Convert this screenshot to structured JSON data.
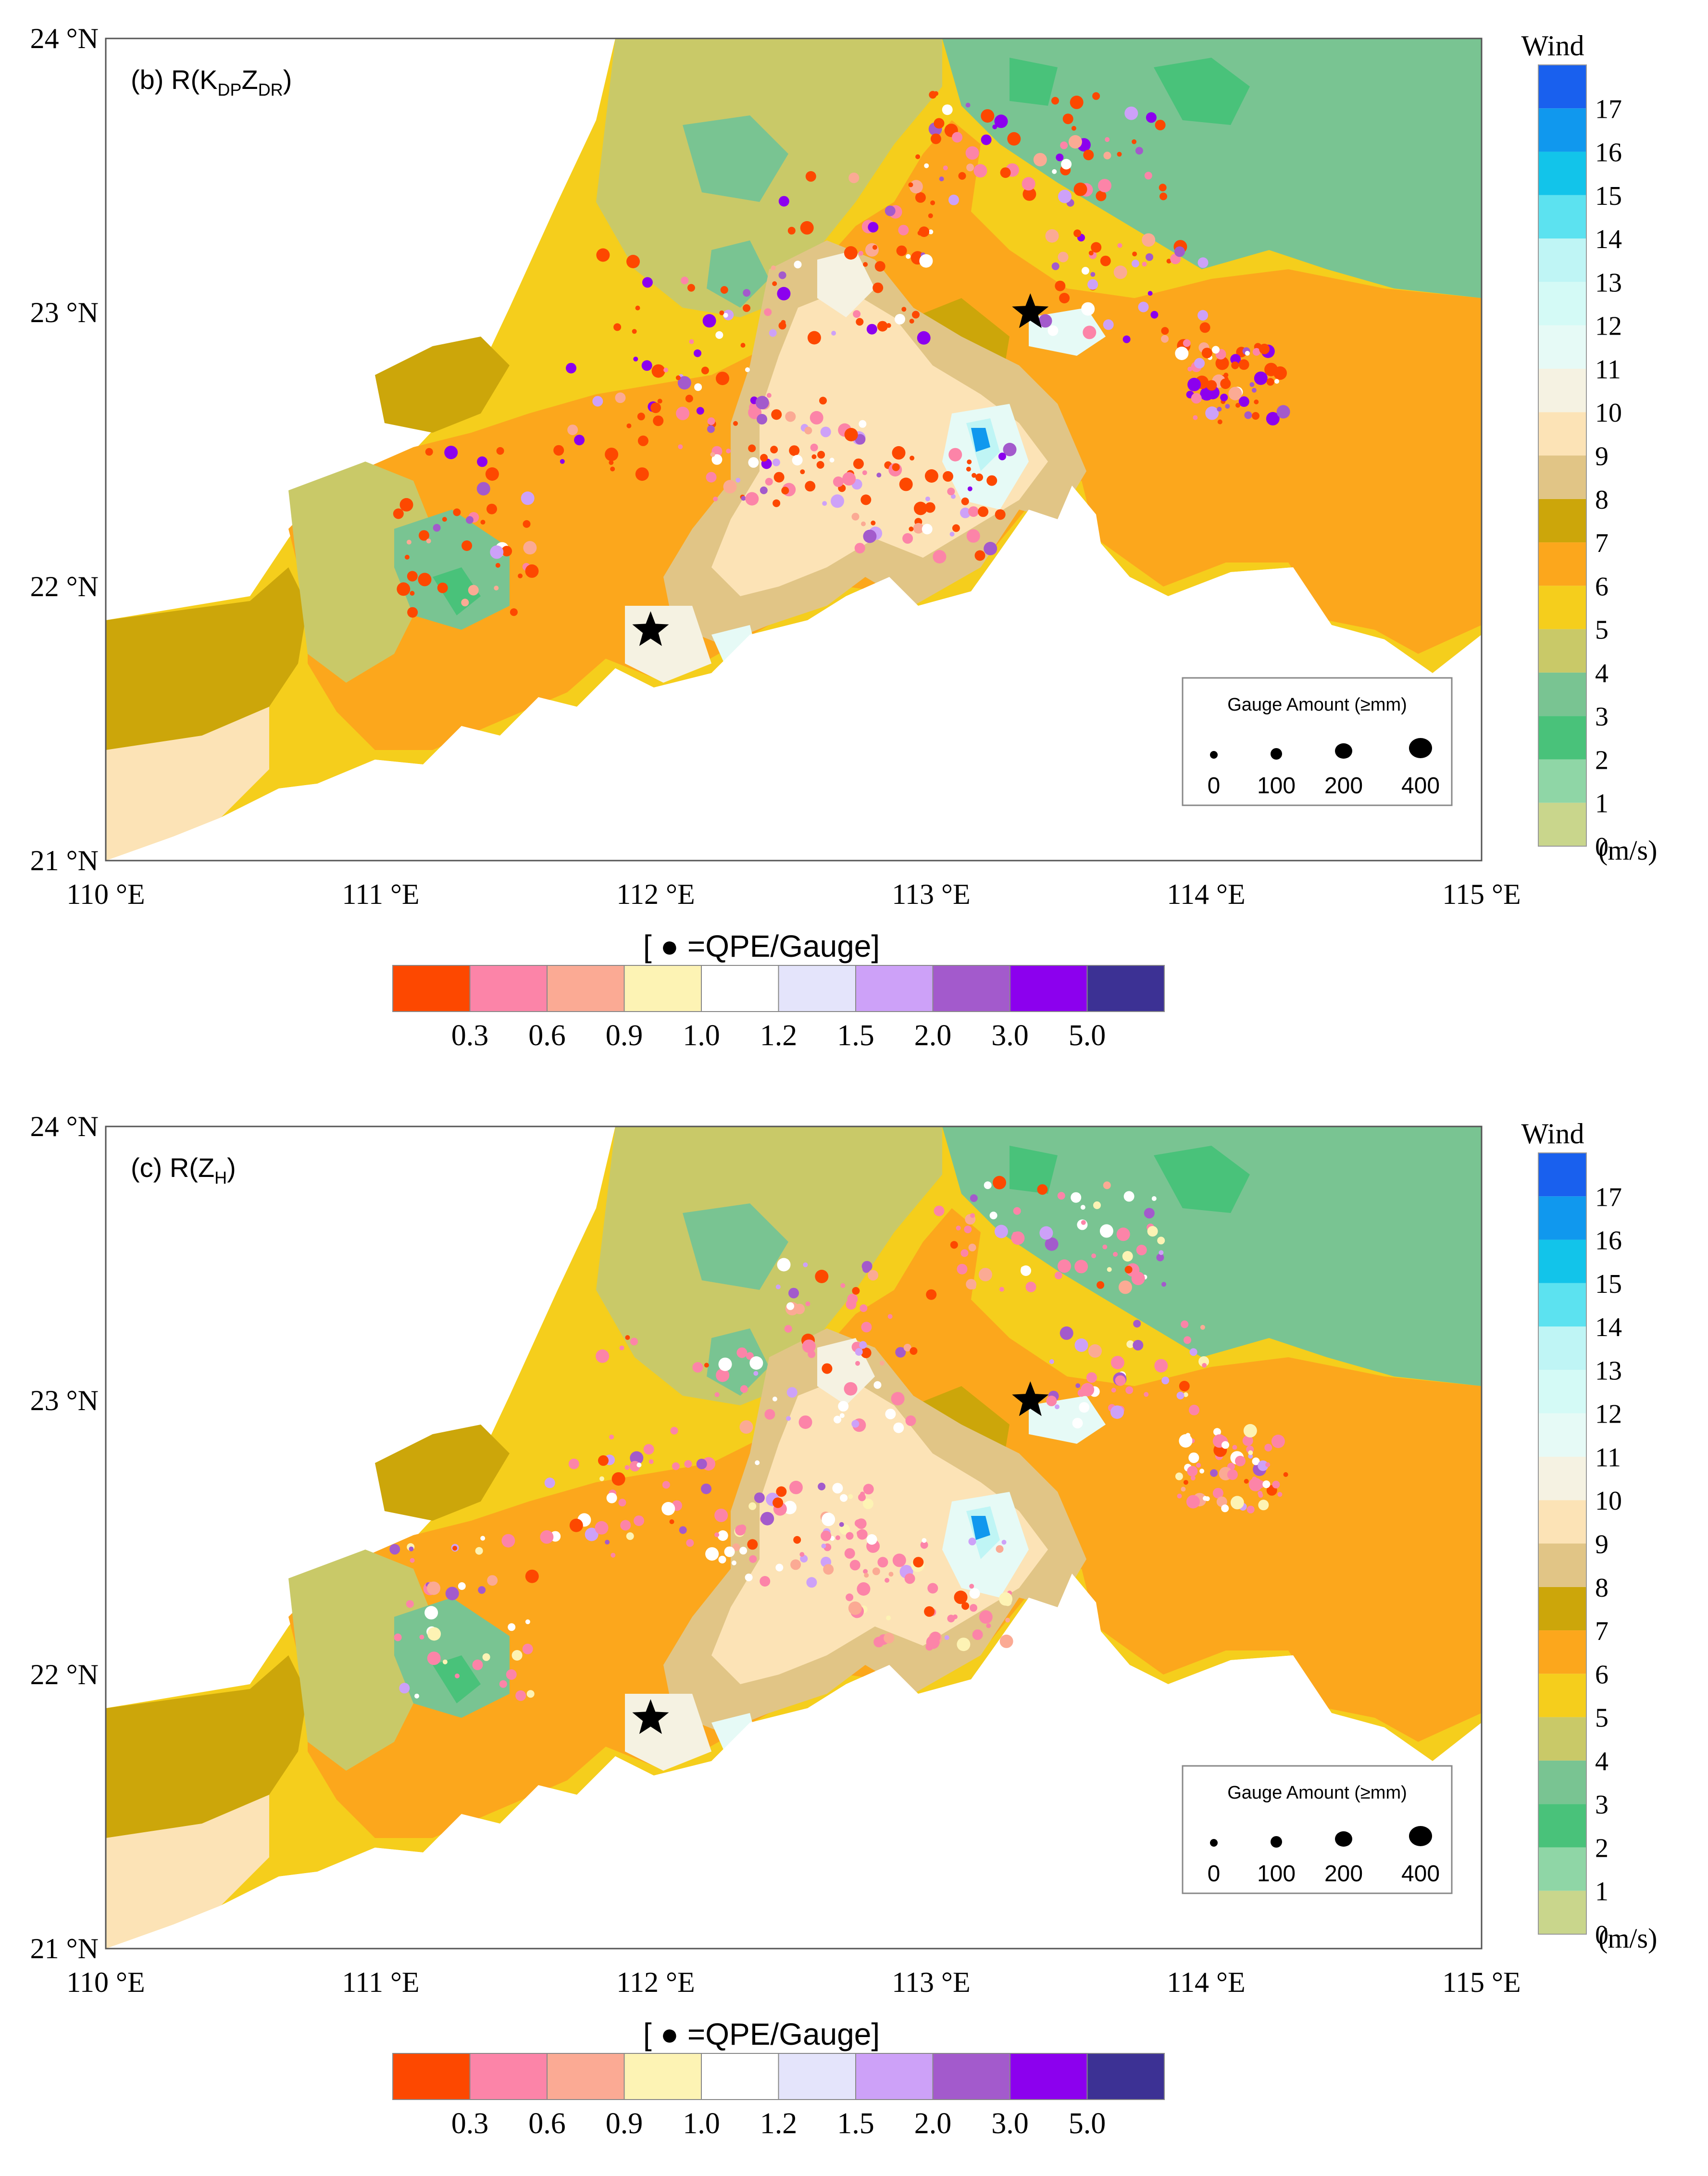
{
  "panels": [
    {
      "id": "b",
      "title_main": "(b) R(K",
      "title_sub1": "DP",
      "title_mid": "Z",
      "title_sub2": "DR",
      "title_end": ")",
      "markers": "red-heavy"
    },
    {
      "id": "c",
      "title_main": "(c) R(Z",
      "title_sub1": "H",
      "title_mid": "",
      "title_sub2": "",
      "title_end": ")",
      "markers": "pink-heavy"
    }
  ],
  "lat_labels": [
    "24 °N",
    "23 °N",
    "22 °N",
    "21 °N"
  ],
  "lon_labels": [
    "110 °E",
    "111 °E",
    "112 °E",
    "113 °E",
    "114 °E",
    "115 °E"
  ],
  "wind_legend": {
    "title": "Wind",
    "unit": "(m/s)",
    "labels": [
      "0",
      "1",
      "2",
      "3",
      "4",
      "5",
      "6",
      "7",
      "8",
      "9",
      "10",
      "11",
      "12",
      "13",
      "14",
      "15",
      "16",
      "17"
    ],
    "colors": [
      "#c9d68c",
      "#8fd6a6",
      "#49c27a",
      "#79c492",
      "#c9c968",
      "#f5ce1c",
      "#fca71c",
      "#cca60a",
      "#e1c586",
      "#fce3b6",
      "#f5f2e2",
      "#e6faf6",
      "#d4faf6",
      "#bff5f5",
      "#5ce2f0",
      "#12c4ea",
      "#1098ee",
      "#1960ee"
    ]
  },
  "gauge_legend": {
    "title": "Gauge Amount (≥mm)",
    "labels": [
      "0",
      "100",
      "200",
      "400"
    ]
  },
  "ratio_legend": {
    "title": "[ ● =QPE/Gauge]",
    "labels": [
      "0.3",
      "0.6",
      "0.9",
      "1.0",
      "1.2",
      "1.5",
      "2.0",
      "3.0",
      "5.0"
    ],
    "colors": [
      "#fd4800",
      "#fc84a8",
      "#fbaa94",
      "#fdf3b4",
      "#ffffff",
      "#e4e4fb",
      "#cda1f8",
      "#a35acc",
      "#8c00ee",
      "#3c3194"
    ]
  },
  "radar_sites": [
    {
      "name": "star-east",
      "lon": 113.36,
      "lat": 23.0
    },
    {
      "name": "star-west",
      "lon": 111.98,
      "lat": 21.84
    }
  ]
}
